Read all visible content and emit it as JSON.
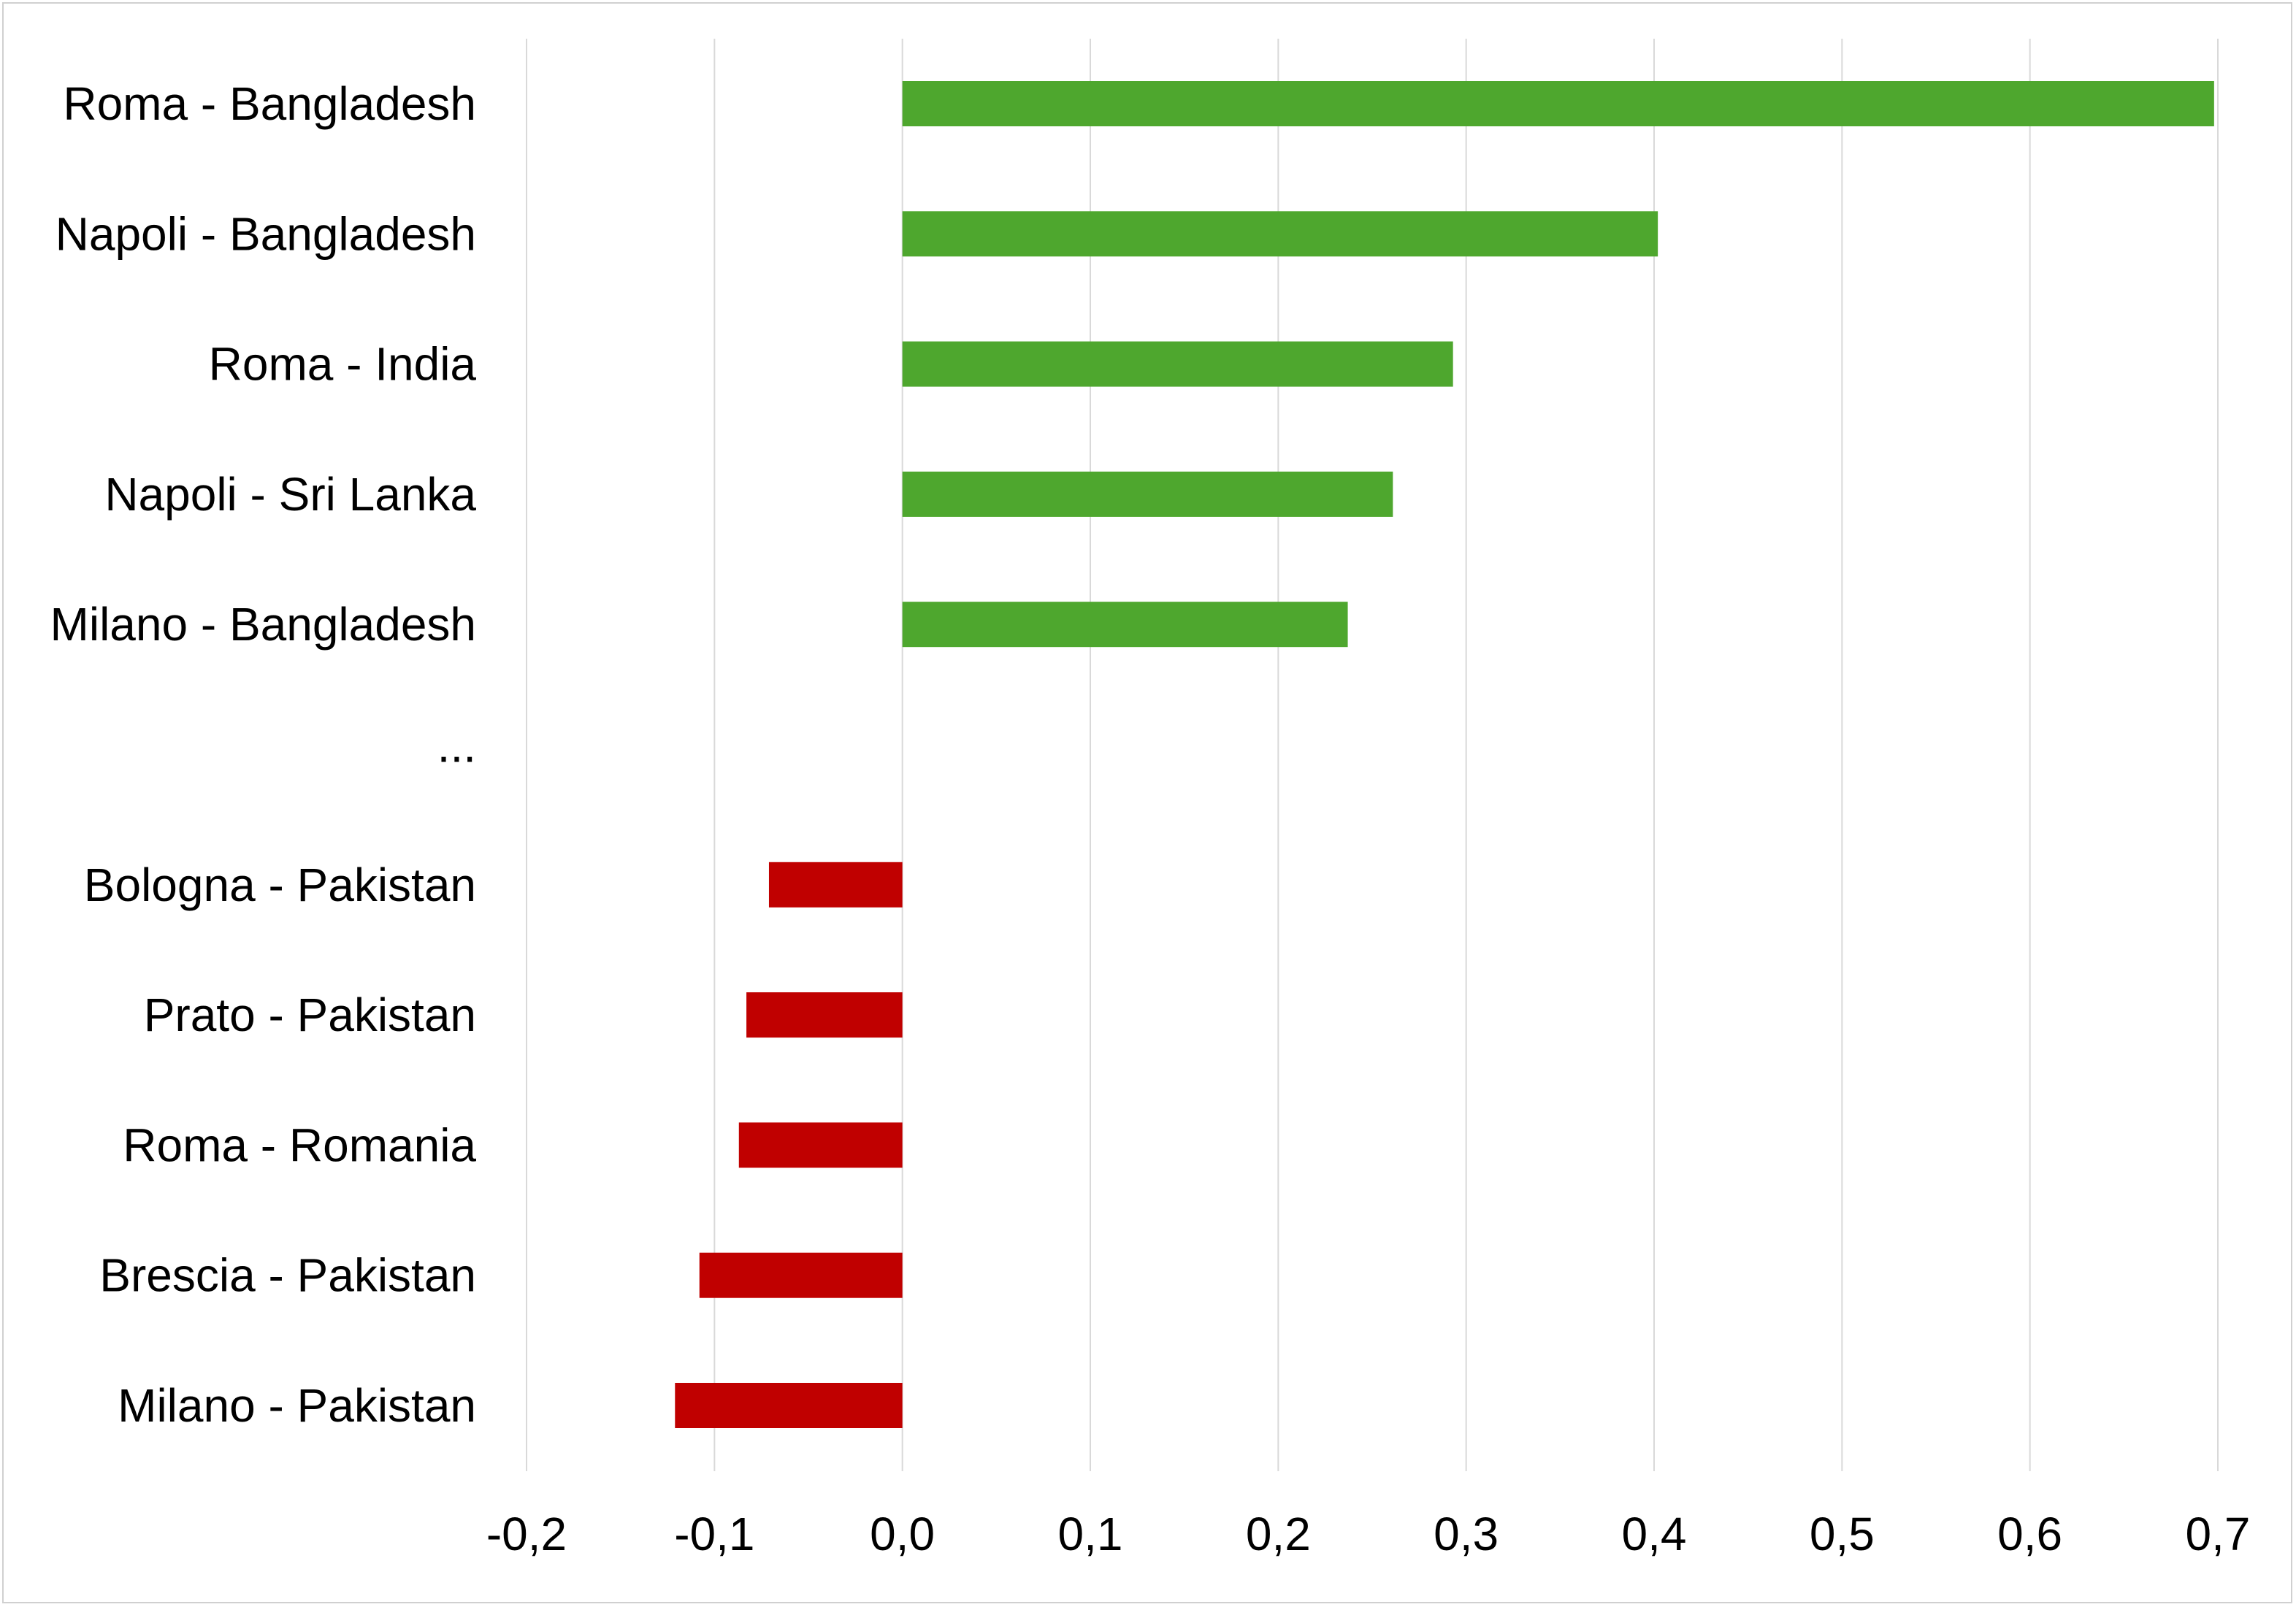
{
  "chart_data": {
    "type": "bar",
    "orientation": "horizontal",
    "title": "",
    "xlabel": "",
    "ylabel": "",
    "grid": true,
    "categories": [
      "Roma - Bangladesh",
      "Napoli - Bangladesh",
      "Roma - India",
      "Napoli - Sri Lanka",
      "Milano - Bangladesh",
      "...",
      "Bologna - Pakistan",
      "Prato - Pakistan",
      "Roma - Romania",
      "Brescia - Pakistan",
      "Milano - Pakistan"
    ],
    "values": [
      0.698,
      0.402,
      0.293,
      0.261,
      0.237,
      null,
      -0.071,
      -0.083,
      -0.087,
      -0.108,
      -0.121
    ],
    "xlim": [
      -0.2,
      0.7
    ],
    "x_ticks": [
      -0.2,
      -0.1,
      0.0,
      0.1,
      0.2,
      0.3,
      0.4,
      0.5,
      0.6,
      0.7
    ],
    "x_tick_labels": [
      "-0,2",
      "-0,1",
      "0,0",
      "0,1",
      "0,2",
      "0,3",
      "0,4",
      "0,5",
      "0,6",
      "0,7"
    ],
    "colors": {
      "positive": "#4ea72e",
      "negative": "#c00000",
      "gridline": "#d9d9d9",
      "frame": "#d0d0d0"
    }
  }
}
